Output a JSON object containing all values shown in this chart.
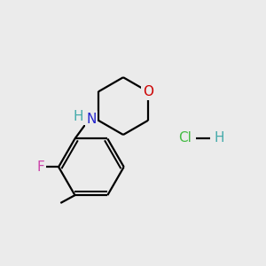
{
  "bg_color": "#ebebeb",
  "bond_color": "#000000",
  "bond_width": 1.6,
  "atom_colors": {
    "O": "#cc0000",
    "N": "#2222cc",
    "F": "#cc44aa",
    "H_label": "#44aaaa",
    "Cl": "#44bb44",
    "H_hcl": "#44aaaa"
  },
  "font_size_atom": 11,
  "font_size_hcl": 11
}
